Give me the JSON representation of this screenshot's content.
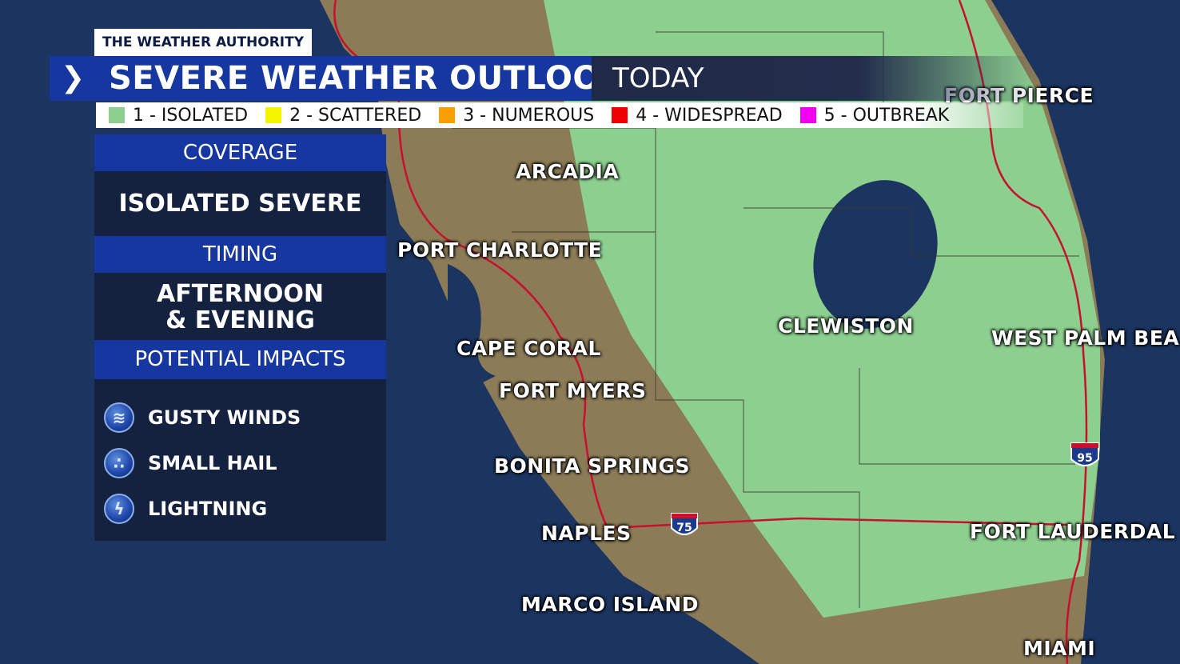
{
  "brand": "THE WEATHER AUTHORITY",
  "header": {
    "title": "SEVERE WEATHER OUTLOOK",
    "period": "TODAY"
  },
  "legend": [
    {
      "label": "1 - ISOLATED",
      "color": "#8ccf8f"
    },
    {
      "label": "2 - SCATTERED",
      "color": "#f5f500"
    },
    {
      "label": "3 - NUMEROUS",
      "color": "#f7a000"
    },
    {
      "label": "4 - WIDESPREAD",
      "color": "#f00000"
    },
    {
      "label": "5 - OUTBREAK",
      "color": "#f000f0"
    }
  ],
  "panel": {
    "coverage_label": "COVERAGE",
    "coverage_value": "ISOLATED SEVERE",
    "timing_label": "TIMING",
    "timing_value_line1": "AFTERNOON",
    "timing_value_line2": "& EVENING",
    "impacts_label": "POTENTIAL IMPACTS",
    "impacts": [
      {
        "label": "GUSTY WINDS",
        "icon": "wind-icon"
      },
      {
        "label": "SMALL HAIL",
        "icon": "hail-icon"
      },
      {
        "label": "LIGHTNING",
        "icon": "lightning-icon"
      }
    ]
  },
  "map": {
    "risk_level": "1 - ISOLATED",
    "cities": [
      "ARCADIA",
      "PORT CHARLOTTE",
      "CAPE CORAL",
      "FORT MYERS",
      "BONITA SPRINGS",
      "NAPLES",
      "MARCO ISLAND",
      "CLEWISTON",
      "FORT PIERCE",
      "WEST PALM BEA",
      "FORT LAUDERDAL",
      "MIAMI"
    ],
    "shields": [
      "75",
      "95"
    ]
  }
}
